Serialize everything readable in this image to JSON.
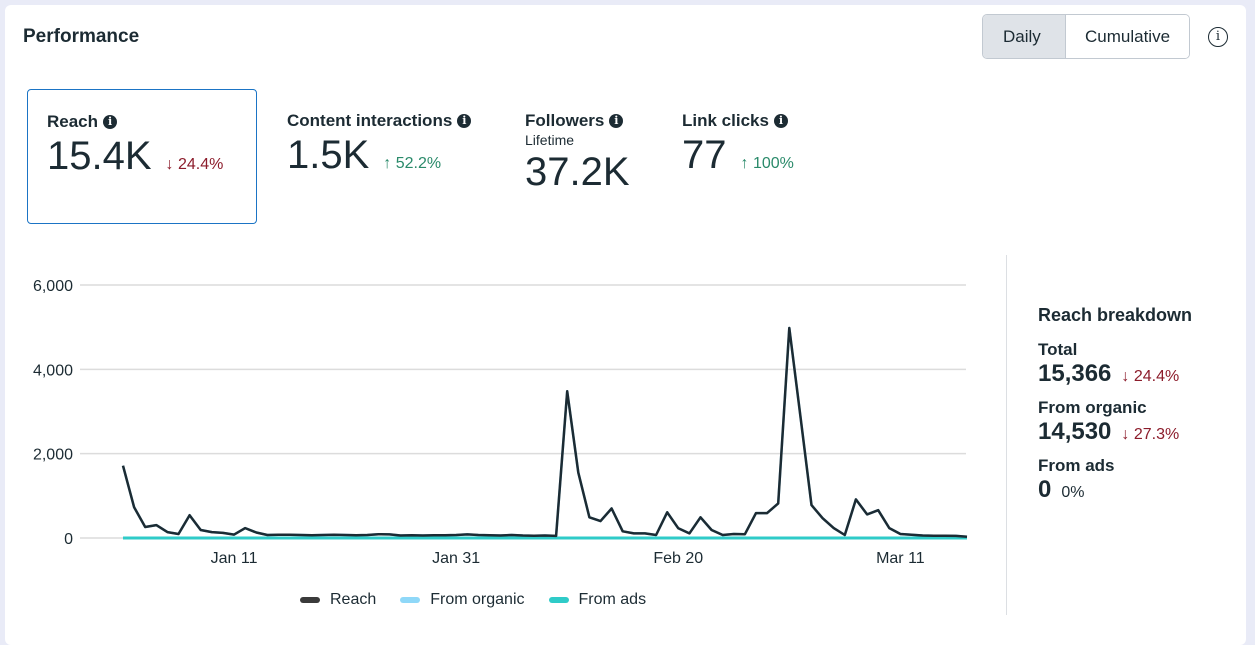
{
  "header": {
    "title": "Performance",
    "toggle": {
      "options": [
        "Daily",
        "Cumulative"
      ],
      "selected": "Daily"
    },
    "info_icon": "info-circle-icon"
  },
  "metrics": [
    {
      "label": "Reach",
      "value": "15.4K",
      "change": "24.4%",
      "direction": "down",
      "selected": true
    },
    {
      "label": "Content interactions",
      "value": "1.5K",
      "change": "52.2%",
      "direction": "up"
    },
    {
      "label": "Followers",
      "sublabel": "Lifetime",
      "value": "37.2K"
    },
    {
      "label": "Link clicks",
      "value": "77",
      "change": "100%",
      "direction": "up"
    }
  ],
  "arrows": {
    "down": "↓",
    "up": "↑"
  },
  "breakdown": {
    "title": "Reach breakdown",
    "items": [
      {
        "label": "Total",
        "value": "15,366",
        "change": "24.4%",
        "direction": "down"
      },
      {
        "label": "From organic",
        "value": "14,530",
        "change": "27.3%",
        "direction": "down"
      },
      {
        "label": "From ads",
        "value": "0",
        "change": "0%",
        "direction": "neutral"
      }
    ]
  },
  "colors": {
    "reach": "#1c2b33",
    "organic": "#8fd8f8",
    "ads": "#2fcbc8",
    "down": "#8c1c2b",
    "up": "#2a8a6a"
  },
  "chart_data": {
    "type": "line",
    "title": "",
    "xlabel": "",
    "ylabel": "",
    "start_date": "Jan 1",
    "num_days": 77,
    "x_ticks": [
      {
        "label": "Jan 11",
        "day": 10
      },
      {
        "label": "Jan 31",
        "day": 30
      },
      {
        "label": "Feb 20",
        "day": 50
      },
      {
        "label": "Mar 11",
        "day": 70
      }
    ],
    "y_ticks": [
      0,
      2000,
      4000,
      6000
    ],
    "y_tick_labels": [
      "0",
      "2,000",
      "4,000",
      "6,000"
    ],
    "ylim": [
      0,
      6000
    ],
    "grid": true,
    "legend_position": "bottom",
    "series": [
      {
        "name": "Reach",
        "key": "reach",
        "values": [
          1715,
          730,
          260,
          305,
          140,
          95,
          540,
          190,
          140,
          120,
          80,
          235,
          130,
          70,
          75,
          75,
          70,
          65,
          70,
          75,
          70,
          65,
          70,
          90,
          85,
          60,
          65,
          60,
          65,
          65,
          70,
          85,
          70,
          65,
          60,
          70,
          60,
          55,
          60,
          50,
          3480,
          1550,
          490,
          400,
          700,
          160,
          110,
          110,
          70,
          610,
          230,
          110,
          490,
          190,
          70,
          95,
          90,
          590,
          590,
          820,
          4980,
          2890,
          780,
          470,
          235,
          70,
          915,
          560,
          660,
          235,
          95,
          75,
          60,
          55,
          55,
          50,
          30
        ]
      },
      {
        "name": "From organic",
        "key": "organic",
        "values": [
          1715,
          730,
          260,
          305,
          140,
          95,
          540,
          190,
          140,
          120,
          80,
          235,
          130,
          70,
          75,
          75,
          70,
          65,
          70,
          75,
          70,
          65,
          70,
          90,
          85,
          60,
          65,
          60,
          65,
          65,
          70,
          85,
          70,
          65,
          60,
          70,
          60,
          55,
          60,
          50,
          3480,
          1550,
          490,
          400,
          700,
          160,
          110,
          110,
          70,
          610,
          230,
          110,
          490,
          190,
          70,
          95,
          90,
          590,
          590,
          820,
          4980,
          2890,
          780,
          470,
          235,
          70,
          915,
          560,
          660,
          235,
          95,
          75,
          60,
          55,
          55,
          50,
          30
        ]
      },
      {
        "name": "From ads",
        "key": "ads",
        "values": [
          0,
          0,
          0,
          0,
          0,
          0,
          0,
          0,
          0,
          0,
          0,
          0,
          0,
          0,
          0,
          0,
          0,
          0,
          0,
          0,
          0,
          0,
          0,
          0,
          0,
          0,
          0,
          0,
          0,
          0,
          0,
          0,
          0,
          0,
          0,
          0,
          0,
          0,
          0,
          0,
          0,
          0,
          0,
          0,
          0,
          0,
          0,
          0,
          0,
          0,
          0,
          0,
          0,
          0,
          0,
          0,
          0,
          0,
          0,
          0,
          0,
          0,
          0,
          0,
          0,
          0,
          0,
          0,
          0,
          0,
          0,
          0,
          0,
          0,
          0,
          0,
          0
        ]
      }
    ]
  }
}
